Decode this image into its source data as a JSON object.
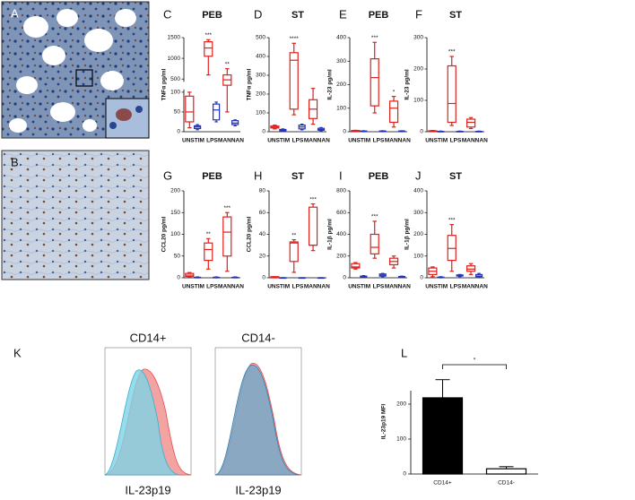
{
  "labels": [
    "A",
    "B",
    "K"
  ],
  "flow": [
    {
      "title": "CD14+",
      "xlabel": "IL-23p19"
    },
    {
      "title": "CD14-",
      "xlabel": "IL-23p19"
    }
  ],
  "chart_data": [
    {
      "type": "box",
      "letter": "C",
      "title": "PEB",
      "ylabel": "TNFα pg/ml",
      "categories": [
        "UNSTIM",
        "LPS",
        "MANNAN"
      ],
      "ylim": [
        0,
        1500
      ],
      "ybreak": [
        100,
        500
      ],
      "yticks": [
        0,
        50,
        100,
        500,
        1000,
        1500
      ],
      "series": [
        {
          "color": "#e0201b",
          "values": [
            [
              10,
              25,
              50,
              90,
              100
            ],
            [
              600,
              1050,
              1250,
              1400,
              1450
            ],
            [
              50,
              350,
              480,
              600,
              750
            ]
          ],
          "annotations": [
            null,
            "***",
            "**"
          ]
        },
        {
          "color": "#2233bb",
          "values": [
            [
              5,
              8,
              12,
              15,
              18
            ],
            [
              25,
              30,
              55,
              70,
              75
            ],
            [
              15,
              18,
              22,
              28,
              30
            ]
          ]
        }
      ]
    },
    {
      "type": "box",
      "letter": "D",
      "title": "ST",
      "ylabel": "TNFα pg/ml",
      "categories": [
        "UNSTIM",
        "LPS",
        "MANNAN"
      ],
      "ylim": [
        0,
        500
      ],
      "yticks": [
        0,
        100,
        200,
        300,
        400,
        500
      ],
      "series": [
        {
          "color": "#e0201b",
          "values": [
            [
              15,
              20,
              25,
              30,
              35
            ],
            [
              90,
              120,
              380,
              420,
              470
            ],
            [
              40,
              70,
              120,
              170,
              230
            ]
          ],
          "annotations": [
            null,
            "****",
            null
          ]
        },
        {
          "color": "#2233bb",
          "values": [
            [
              3,
              5,
              8,
              12,
              15
            ],
            [
              10,
              15,
              25,
              35,
              40
            ],
            [
              5,
              8,
              12,
              18,
              22
            ]
          ]
        }
      ]
    },
    {
      "type": "box",
      "letter": "E",
      "title": "PEB",
      "ylabel": "IL-23 pg/ml",
      "categories": [
        "UNSTIM",
        "LPS",
        "MANNAN"
      ],
      "ylim": [
        0,
        400
      ],
      "yticks": [
        0,
        100,
        200,
        300,
        400
      ],
      "series": [
        {
          "color": "#e0201b",
          "values": [
            [
              2,
              3,
              4,
              5,
              6
            ],
            [
              80,
              110,
              230,
              310,
              380
            ],
            [
              20,
              40,
              100,
              130,
              150
            ]
          ],
          "annotations": [
            null,
            "***",
            "*"
          ]
        },
        {
          "color": "#2233bb",
          "values": [
            [
              0,
              1,
              2,
              3,
              4
            ],
            [
              0,
              1,
              2,
              3,
              4
            ],
            [
              0,
              1,
              2,
              3,
              4
            ]
          ]
        }
      ]
    },
    {
      "type": "box",
      "letter": "F",
      "title": "ST",
      "ylabel": "IL-23 pg/ml",
      "categories": [
        "UNSTIM",
        "LPS",
        "MANNAN"
      ],
      "ylim": [
        0,
        300
      ],
      "yticks": [
        0,
        100,
        200,
        300
      ],
      "series": [
        {
          "color": "#e0201b",
          "values": [
            [
              0,
              1,
              2,
              3,
              4
            ],
            [
              20,
              30,
              90,
              210,
              240
            ],
            [
              10,
              15,
              30,
              40,
              45
            ]
          ],
          "annotations": [
            null,
            "***",
            null
          ]
        },
        {
          "color": "#2233bb",
          "values": [
            [
              0,
              0,
              1,
              1,
              2
            ],
            [
              0,
              0,
              1,
              1,
              2
            ],
            [
              0,
              0,
              1,
              1,
              2
            ]
          ]
        }
      ]
    },
    {
      "type": "box",
      "letter": "G",
      "title": "PEB",
      "ylabel": "CCL20 pg/ml",
      "categories": [
        "UNSTIM",
        "LPS",
        "MANNAN"
      ],
      "ylim": [
        0,
        200
      ],
      "yticks": [
        0,
        50,
        100,
        150,
        200
      ],
      "series": [
        {
          "color": "#e0201b",
          "values": [
            [
              2,
              3,
              6,
              10,
              12
            ],
            [
              20,
              40,
              65,
              80,
              90
            ],
            [
              15,
              50,
              105,
              140,
              150
            ]
          ],
          "annotations": [
            null,
            "**",
            "***"
          ]
        },
        {
          "color": "#2233bb",
          "values": [
            [
              0,
              0,
              1,
              1,
              2
            ],
            [
              0,
              0,
              1,
              1,
              2
            ],
            [
              0,
              0,
              1,
              1,
              2
            ]
          ]
        }
      ]
    },
    {
      "type": "box",
      "letter": "H",
      "title": "ST",
      "ylabel": "CCL20 pg/ml",
      "categories": [
        "UNSTIM",
        "LPS",
        "MANNAN"
      ],
      "ylim": [
        0,
        80
      ],
      "yticks": [
        0,
        20,
        40,
        60,
        80
      ],
      "series": [
        {
          "color": "#e0201b",
          "values": [
            [
              0,
              0,
              0.5,
              1,
              1
            ],
            [
              5,
              15,
              32,
              33,
              35
            ],
            [
              25,
              30,
              30,
              65,
              68
            ]
          ],
          "annotations": [
            null,
            "**",
            "***"
          ]
        },
        {
          "color": "#2233bb",
          "values": [
            [
              0,
              0,
              0,
              0,
              0
            ],
            [
              0,
              0,
              0,
              0,
              0
            ],
            [
              0,
              0,
              0,
              0,
              0
            ]
          ]
        }
      ]
    },
    {
      "type": "box",
      "letter": "I",
      "title": "PEB",
      "ylabel": "IL-1β pg/ml",
      "categories": [
        "UNSTIM",
        "LPS",
        "MANNAN"
      ],
      "ylim": [
        0,
        800
      ],
      "yticks": [
        0,
        200,
        400,
        600,
        800
      ],
      "series": [
        {
          "color": "#e0201b",
          "values": [
            [
              80,
              90,
              100,
              130,
              140
            ],
            [
              180,
              220,
              280,
              400,
              520
            ],
            [
              90,
              120,
              150,
              180,
              200
            ]
          ],
          "annotations": [
            null,
            "***",
            null
          ]
        },
        {
          "color": "#2233bb",
          "values": [
            [
              5,
              8,
              12,
              15,
              20
            ],
            [
              10,
              15,
              25,
              35,
              40
            ],
            [
              3,
              5,
              8,
              12,
              15
            ]
          ]
        }
      ]
    },
    {
      "type": "box",
      "letter": "J",
      "title": "ST",
      "ylabel": "IL-1β pg/ml",
      "categories": [
        "UNSTIM",
        "LPS",
        "MANNAN"
      ],
      "ylim": [
        0,
        400
      ],
      "yticks": [
        0,
        100,
        200,
        300,
        400
      ],
      "series": [
        {
          "color": "#e0201b",
          "values": [
            [
              5,
              15,
              30,
              45,
              50
            ],
            [
              30,
              80,
              135,
              195,
              245
            ],
            [
              15,
              30,
              40,
              55,
              65
            ]
          ],
          "annotations": [
            null,
            "***",
            null
          ]
        },
        {
          "color": "#2233bb",
          "values": [
            [
              0,
              1,
              2,
              3,
              5
            ],
            [
              5,
              8,
              10,
              13,
              15
            ],
            [
              3,
              5,
              8,
              15,
              20
            ]
          ]
        }
      ]
    },
    {
      "type": "bar",
      "letter": "L",
      "ylabel": "IL-23p19 MFI",
      "categories": [
        "CD14+",
        "CD14-"
      ],
      "values": [
        218,
        15
      ],
      "errors": [
        52,
        6
      ],
      "colors": [
        "#000000",
        "#ffffff"
      ],
      "ylim": [
        0,
        300
      ],
      "yticks": [
        0,
        100,
        200
      ],
      "significance": "*"
    }
  ]
}
